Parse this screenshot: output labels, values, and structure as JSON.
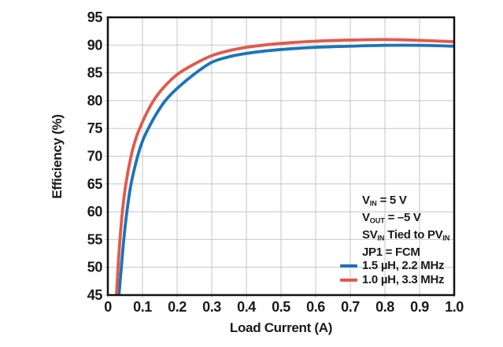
{
  "chart_data": {
    "type": "line",
    "title": "",
    "xlabel": "Load Current (A)",
    "ylabel": "Efficiency (%)",
    "xlim": [
      0,
      1.0
    ],
    "ylim": [
      45,
      95
    ],
    "grid": true,
    "legend_position": "lower right",
    "x_tick_values": [
      0,
      0.1,
      0.2,
      0.3,
      0.4,
      0.5,
      0.6,
      0.7,
      0.8,
      0.9,
      1.0
    ],
    "x_tick_labels": [
      "0",
      "0.1",
      "0.2",
      "0.3",
      "0.4",
      "0.5",
      "0.6",
      "0.7",
      "0.8",
      "0.9",
      "1.0"
    ],
    "y_tick_values": [
      45,
      50,
      55,
      60,
      65,
      70,
      75,
      80,
      85,
      90,
      95
    ],
    "y_tick_labels": [
      "45",
      "50",
      "55",
      "60",
      "65",
      "70",
      "75",
      "80",
      "85",
      "90",
      "95"
    ],
    "series": [
      {
        "name": "1.5 µH, 2.2 MHz",
        "color": "#1b74b8",
        "points": [
          [
            0.032,
            45
          ],
          [
            0.039,
            50
          ],
          [
            0.046,
            55
          ],
          [
            0.055,
            60
          ],
          [
            0.067,
            65
          ],
          [
            0.086,
            70
          ],
          [
            0.1,
            72.7
          ],
          [
            0.117,
            75
          ],
          [
            0.14,
            77.6
          ],
          [
            0.166,
            80
          ],
          [
            0.2,
            82.2
          ],
          [
            0.25,
            84.8
          ],
          [
            0.3,
            86.9
          ],
          [
            0.35,
            87.9
          ],
          [
            0.4,
            88.5
          ],
          [
            0.45,
            88.9
          ],
          [
            0.5,
            89.2
          ],
          [
            0.6,
            89.6
          ],
          [
            0.7,
            89.8
          ],
          [
            0.8,
            89.95
          ],
          [
            0.9,
            89.95
          ],
          [
            1.0,
            89.8
          ]
        ]
      },
      {
        "name": "1.0 µH, 3.3 MHz",
        "color": "#e2594a",
        "points": [
          [
            0.025,
            45
          ],
          [
            0.03,
            50.5
          ],
          [
            0.035,
            55
          ],
          [
            0.042,
            60
          ],
          [
            0.052,
            65
          ],
          [
            0.067,
            70
          ],
          [
            0.08,
            73
          ],
          [
            0.092,
            75
          ],
          [
            0.11,
            77.5
          ],
          [
            0.132,
            80
          ],
          [
            0.16,
            82.3
          ],
          [
            0.2,
            84.7
          ],
          [
            0.25,
            86.6
          ],
          [
            0.3,
            88.1
          ],
          [
            0.35,
            89.0
          ],
          [
            0.4,
            89.6
          ],
          [
            0.45,
            90.0
          ],
          [
            0.5,
            90.3
          ],
          [
            0.6,
            90.7
          ],
          [
            0.7,
            90.9
          ],
          [
            0.8,
            91.0
          ],
          [
            0.9,
            90.85
          ],
          [
            1.0,
            90.6
          ]
        ]
      }
    ],
    "annotations": [
      "VIN = 5 V",
      "VOUT = –5 V",
      "SVIN Tied to PVIN",
      "JP1 = FCM"
    ]
  },
  "legend": {
    "conditions": [
      {
        "parts": [
          {
            "t": "V"
          },
          {
            "t": "IN",
            "sub": true
          },
          {
            "t": " = 5 V"
          }
        ]
      },
      {
        "parts": [
          {
            "t": "V"
          },
          {
            "t": "OUT",
            "sub": true
          },
          {
            "t": " = –5 V"
          }
        ]
      },
      {
        "parts": [
          {
            "t": "SV"
          },
          {
            "t": "IN",
            "sub": true
          },
          {
            "t": " Tied to PV"
          },
          {
            "t": "IN",
            "sub": true
          }
        ]
      },
      {
        "parts": [
          {
            "t": "JP1 = FCM"
          }
        ]
      }
    ],
    "entries": [
      {
        "label": "1.5 µH, 2.2 MHz",
        "color": "#1b74b8"
      },
      {
        "label": "1.0 µH, 3.3 MHz",
        "color": "#e2594a"
      }
    ]
  },
  "colors": {
    "series_blue": "#1b74b8",
    "series_red": "#e2594a",
    "grid": "#c5c5c5",
    "axis": "#111111",
    "text": "#1a1a1a",
    "background": "#ffffff"
  }
}
